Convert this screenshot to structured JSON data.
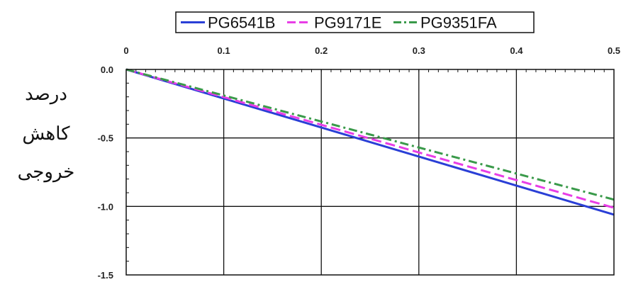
{
  "chart_data": {
    "type": "line",
    "title": "",
    "xlabel": "",
    "ylabel_lines": [
      "درصد",
      "کاهش",
      "خروجی"
    ],
    "x": [
      0,
      0.5
    ],
    "xlim": [
      0,
      0.5
    ],
    "ylim": [
      -1.5,
      0
    ],
    "x_ticks": [
      "0",
      "0.1",
      "0.2",
      "0.3",
      "0.4",
      "0.5"
    ],
    "y_ticks": [
      "0.0",
      "-0.5",
      "-1.0",
      "-1.5"
    ],
    "x_axis_position": "top",
    "grid": true,
    "legend_position": "top",
    "series": [
      {
        "name": "PG6541B",
        "values": [
          0,
          -1.06
        ],
        "color": "#2a3fd6",
        "style": "solid"
      },
      {
        "name": "PG9171E",
        "values": [
          0,
          -1.01
        ],
        "color": "#e83ee6",
        "style": "dashed"
      },
      {
        "name": "PG9351FA",
        "values": [
          0,
          -0.95
        ],
        "color": "#3a9a4a",
        "style": "dashdot"
      }
    ]
  }
}
